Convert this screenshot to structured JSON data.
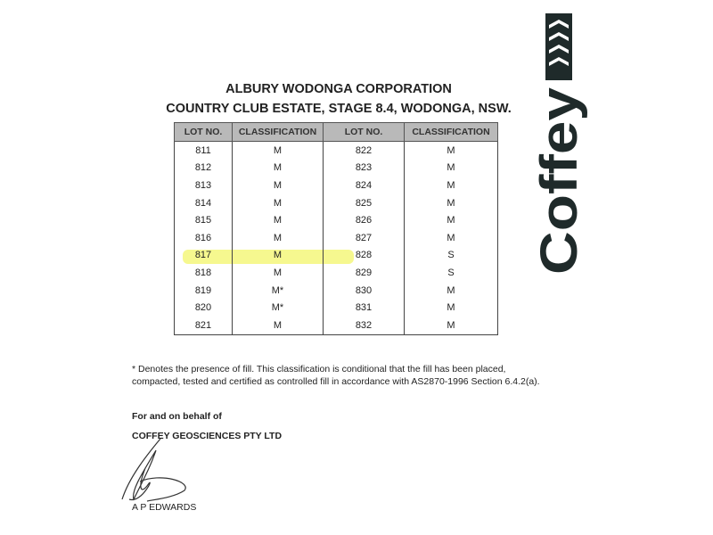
{
  "header": {
    "line1": "ALBURY WODONGA CORPORATION",
    "line2": "COUNTRY CLUB ESTATE, STAGE 8.4, WODONGA, NSW."
  },
  "table": {
    "columns": [
      "LOT NO.",
      "CLASSIFICATION",
      "LOT NO.",
      "CLASSIFICATION"
    ],
    "rows": [
      [
        "811",
        "M",
        "822",
        "M"
      ],
      [
        "812",
        "M",
        "823",
        "M"
      ],
      [
        "813",
        "M",
        "824",
        "M"
      ],
      [
        "814",
        "M",
        "825",
        "M"
      ],
      [
        "815",
        "M",
        "826",
        "M"
      ],
      [
        "816",
        "M",
        "827",
        "M"
      ],
      [
        "817",
        "M",
        "828",
        "S"
      ],
      [
        "818",
        "M",
        "829",
        "S"
      ],
      [
        "819",
        "M*",
        "830",
        "M"
      ],
      [
        "820",
        "M*",
        "831",
        "M"
      ],
      [
        "821",
        "M",
        "832",
        "M"
      ]
    ],
    "highlighted_row": "817",
    "highlight_color": "#f3f56a"
  },
  "note": "* Denotes the presence of fill.  This classification is conditional that the fill has been placed, compacted, tested and certified as controlled fill in accordance with AS2870-1996 Section 6.4.2(a).",
  "signature": {
    "line1": "For and on behalf of",
    "line2": "COFFEY GEOSCIENCES PTY LTD",
    "name": "A P EDWARDS"
  },
  "logo": {
    "text": "Coffey",
    "color": "#1f2a2a"
  }
}
